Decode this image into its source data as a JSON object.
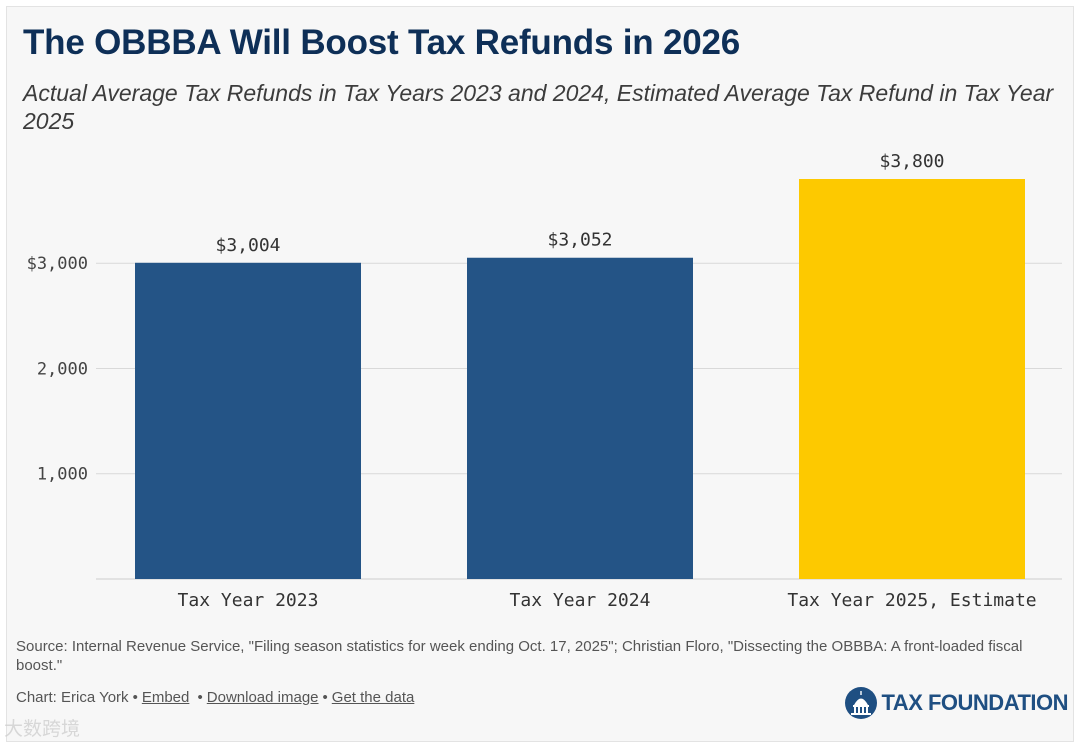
{
  "header": {
    "title": "The OBBBA Will Boost Tax Refunds in 2026",
    "subtitle": "Actual Average Tax Refunds in Tax Years 2023 and 2024, Estimated Average Tax Refund in Tax Year 2025"
  },
  "chart_data": {
    "type": "bar",
    "categories": [
      "Tax Year 2023",
      "Tax Year 2024",
      "Tax Year 2025, Estimate"
    ],
    "values": [
      3004,
      3052,
      3800
    ],
    "value_labels": [
      "$3,004",
      "$3,052",
      "$3,800"
    ],
    "bar_colors": [
      "#245486",
      "#245486",
      "#fdc900"
    ],
    "y_ticks": [
      1000,
      2000,
      3000
    ],
    "y_tick_labels": [
      "1,000",
      "2,000",
      "$3,000"
    ],
    "ylim": [
      0,
      3800
    ],
    "grid": true,
    "xlabel": "",
    "ylabel": ""
  },
  "footer": {
    "source": "Source: Internal Revenue Service, \"Filing season statistics for week ending Oct. 17, 2025\"; Christian Floro, \"Dissecting the OBBBA: A front-loaded fiscal boost.\"",
    "credit": "Chart: Erica York",
    "embed_label": "Embed",
    "download_label": "Download image",
    "data_label": "Get the data",
    "logo_text": "TAX FOUNDATION",
    "logo_icon": "capitol-dome-icon",
    "brand_color": "#1f4f82"
  },
  "watermark": {
    "text": "大数跨境"
  }
}
